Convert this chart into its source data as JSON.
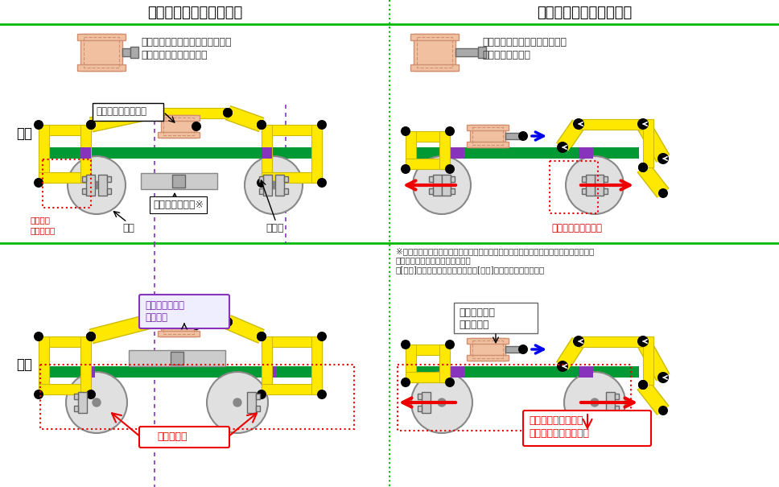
{
  "bg_color": "#ffffff",
  "green_line": "#00bb00",
  "green_bar": "#009933",
  "purple": "#8833bb",
  "yellow": "#FFE800",
  "yellow_dark": "#ccbb00",
  "salmon": "#f0c0a0",
  "salmon_dark": "#d09070",
  "gray1": "#cccccc",
  "gray2": "#aaaaaa",
  "gray3": "#888888",
  "gray4": "#666666",
  "black": "#000000",
  "white": "#ffffff",
  "red": "#ee0000",
  "blue": "#0000ee",
  "text_dark": "#333333",
  "text_red": "#cc0000",
  "text_purple": "#7722aa",
  "title_left": "』ブレーキをかける前『",
  "title_right": "』ブレーキをかけた時『",
  "row_top": "通常",
  "row_bottom": "今回",
  "lbl_brake_cyl": "ブレーキシリンダー",
  "lbl_turnbuckle": "ターンバックル※",
  "lbl_wheel": "車輪",
  "lbl_brake_shoe": "制輪子",
  "lbl_gap": "制輪子と\n車輪に隙間",
  "lbl_press": "制輪子が車輪に圧着",
  "lbl_turnbuckle_long": "ターンバックル\nが長過ぎ",
  "lbl_wide_gap": "隙間が広い",
  "lbl_cylinder_full": "シリンダーが\n伸びきった",
  "lbl_cannot_press": "制輪子が車輪を押し\n付けることができない",
  "txt_retracted": "ストロークが縮んでおり、制輪子\nが車輪から離れている。",
  "txt_extended": "ストロークが伸びると制輪子が\n車輪に圧着する。",
  "txt_note": "※ターンバックル：長さを調節することで、制輪子と車輪の離れ（ブレーキシンダーの\n　ストローク量）を調整する役割\n　[長い]制輪子が車輪から離れる　[短い]制輪子が車輪に近付く"
}
